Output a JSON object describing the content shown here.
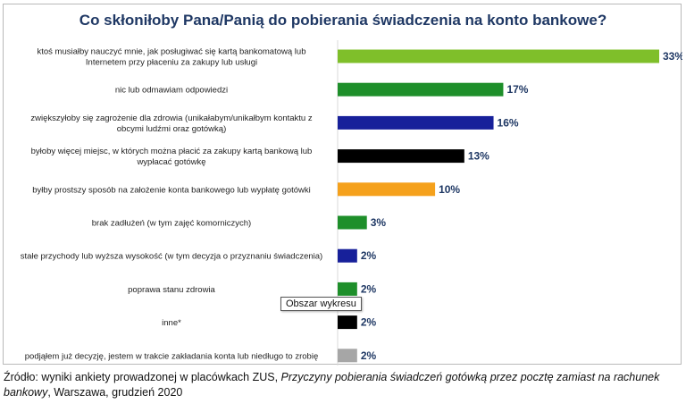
{
  "chart_data": {
    "type": "bar",
    "orientation": "horizontal",
    "title": "Co skłoniłoby Pana/Panią do pobierania świadczenia na konto bankowe?",
    "categories": [
      [
        "ktoś musiałby nauczyć mnie, jak posługiwać się kartą bankomatową lub",
        "Internetem przy płaceniu za zakupy lub usługi"
      ],
      [
        "nic lub odmawiam odpowiedzi"
      ],
      [
        "zwiększyłoby się zagrożenie dla zdrowia (unikałabym/unikałbym kontaktu z",
        "obcymi ludźmi oraz gotówką)"
      ],
      [
        "byłoby więcej miejsc, w których można płacić za zakupy kartą bankową lub",
        "wypłacać gotówkę"
      ],
      [
        "byłby prostszy sposób na założenie konta bankowego lub wypłatę gotówki"
      ],
      [
        "brak zadłużeń (w tym zajęć komorniczych)"
      ],
      [
        "stałe przychody lub wyższa wysokość (w tym decyzja o przyznaniu świadczenia)"
      ],
      [
        "poprawa stanu zdrowia"
      ],
      [
        "inne*"
      ],
      [
        "podjąłem już decyzję, jestem w trakcie zakładania konta lub niedługo to zrobię"
      ]
    ],
    "values": [
      33,
      17,
      16,
      13,
      10,
      3,
      2,
      2,
      2,
      2
    ],
    "value_labels": [
      "33%",
      "17%",
      "16%",
      "13%",
      "10%",
      "3%",
      "2%",
      "2%",
      "2%",
      "2%"
    ],
    "colors": [
      "#7fbf2a",
      "#1e8f2a",
      "#17209a",
      "#000000",
      "#f5a11c",
      "#1e8f2a",
      "#17209a",
      "#1e8f2a",
      "#000000",
      "#a6a6a6"
    ],
    "xlim": [
      0,
      33
    ],
    "grid": false,
    "legend": "none"
  },
  "tooltip": {
    "text": "Obszar wykresu"
  },
  "source": {
    "prefix": "Źródło: wyniki ankiety prowadzonej w placówkach ZUS, ",
    "italic": "Przyczyny pobierania świadczeń gotówką przez pocztę zamiast na rachunek bankowy",
    "suffix": ", Warszawa, grudzień 2020"
  }
}
